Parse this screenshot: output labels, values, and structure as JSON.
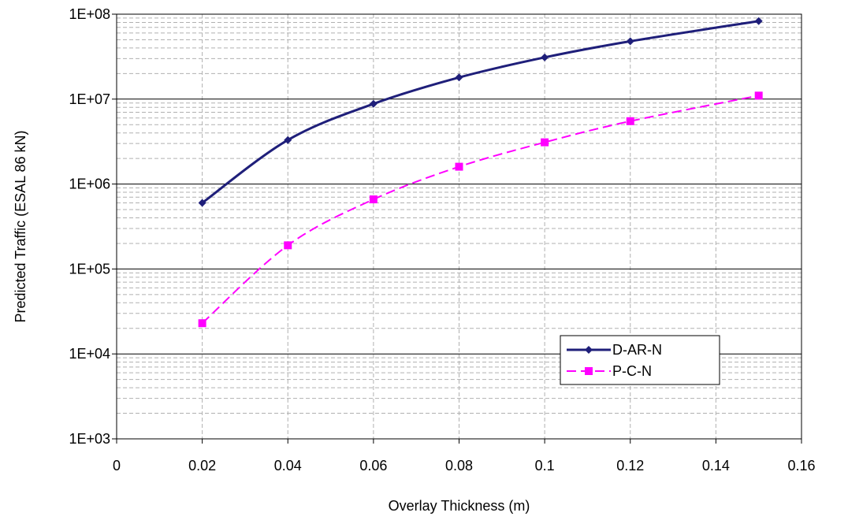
{
  "chart_data": {
    "type": "line",
    "title": "",
    "xlabel": "Overlay Thickness (m)",
    "ylabel": "Predicted Traffic (ESAL 86 kN)",
    "xlim": [
      0,
      0.16
    ],
    "ylim": [
      1000,
      100000000
    ],
    "yscale": "log",
    "x_ticks": [
      "0",
      "0.02",
      "0.04",
      "0.06",
      "0.08",
      "0.1",
      "0.12",
      "0.14",
      "0.16"
    ],
    "y_ticks": [
      "1E+03",
      "1E+04",
      "1E+05",
      "1E+06",
      "1E+07",
      "1E+08"
    ],
    "grid": "on",
    "legend_position": "bottom-right",
    "series": [
      {
        "name": "D-AR-N",
        "color": "#1f1f7a",
        "marker": "diamond",
        "line_style": "solid",
        "x": [
          0.02,
          0.04,
          0.06,
          0.08,
          0.1,
          0.12,
          0.15
        ],
        "values": [
          600000,
          3300000,
          8800000,
          18000000,
          31000000,
          48000000,
          83000000
        ]
      },
      {
        "name": "P-C-N",
        "color": "#ff00ff",
        "marker": "square",
        "line_style": "dashed",
        "x": [
          0.02,
          0.04,
          0.06,
          0.08,
          0.1,
          0.12,
          0.15
        ],
        "values": [
          23000,
          190000,
          660000,
          1600000,
          3100000,
          5500000,
          11000000
        ]
      }
    ]
  }
}
